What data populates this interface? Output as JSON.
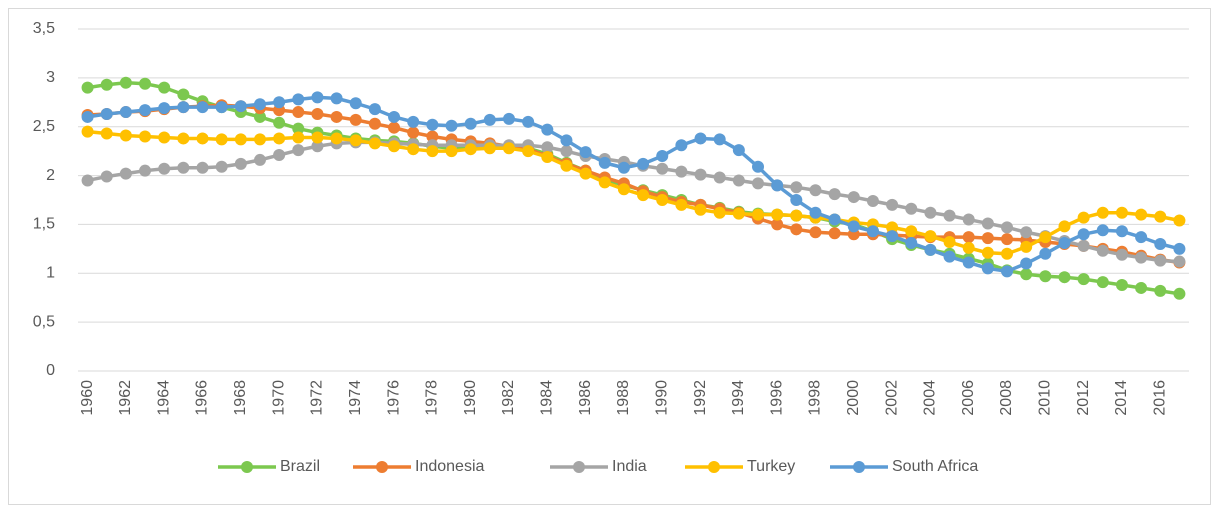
{
  "chart_data": {
    "type": "line",
    "categories": [
      "1960",
      null,
      "1962",
      null,
      "1964",
      null,
      "1966",
      null,
      "1968",
      null,
      "1970",
      null,
      "1972",
      null,
      "1974",
      null,
      "1976",
      null,
      "1978",
      null,
      "1980",
      null,
      "1982",
      null,
      "1984",
      null,
      "1986",
      null,
      "1988",
      null,
      "1990",
      null,
      "1992",
      null,
      "1994",
      null,
      "1996",
      null,
      "1998",
      null,
      "2000",
      null,
      "2002",
      null,
      "2004",
      null,
      "2006",
      null,
      "2008",
      null,
      "2010",
      null,
      "2012",
      null,
      "2014",
      null,
      "2016",
      null
    ],
    "series": [
      {
        "name": "Brazil",
        "color": "#7cc84f",
        "values": [
          2.9,
          2.93,
          2.95,
          2.94,
          2.9,
          2.83,
          2.76,
          2.7,
          2.65,
          2.6,
          2.54,
          2.48,
          2.44,
          2.41,
          2.38,
          2.36,
          2.35,
          2.33,
          2.3,
          2.28,
          2.3,
          2.3,
          2.3,
          2.28,
          2.22,
          2.13,
          2.05,
          1.96,
          1.9,
          1.85,
          1.8,
          1.75,
          1.7,
          1.67,
          1.63,
          1.61,
          1.6,
          1.59,
          1.57,
          1.53,
          1.5,
          1.43,
          1.35,
          1.29,
          1.24,
          1.2,
          1.15,
          1.1,
          1.03,
          0.99,
          0.97,
          0.96,
          0.94,
          0.91,
          0.88,
          0.85,
          0.82,
          0.79
        ]
      },
      {
        "name": "Indonesia",
        "color": "#ed7d31",
        "values": [
          2.62,
          2.63,
          2.65,
          2.66,
          2.68,
          2.7,
          2.71,
          2.72,
          2.71,
          2.69,
          2.67,
          2.65,
          2.63,
          2.6,
          2.57,
          2.53,
          2.49,
          2.44,
          2.4,
          2.37,
          2.35,
          2.33,
          2.3,
          2.27,
          2.2,
          2.12,
          2.05,
          1.98,
          1.92,
          1.84,
          1.78,
          1.73,
          1.7,
          1.66,
          1.62,
          1.56,
          1.5,
          1.45,
          1.42,
          1.41,
          1.4,
          1.4,
          1.39,
          1.38,
          1.37,
          1.37,
          1.37,
          1.36,
          1.35,
          1.34,
          1.32,
          1.3,
          1.28,
          1.25,
          1.22,
          1.18,
          1.14,
          1.11
        ]
      },
      {
        "name": "India",
        "color": "#a5a5a5",
        "values": [
          1.95,
          1.99,
          2.02,
          2.05,
          2.07,
          2.08,
          2.08,
          2.09,
          2.12,
          2.16,
          2.21,
          2.26,
          2.3,
          2.33,
          2.34,
          2.34,
          2.33,
          2.32,
          2.31,
          2.31,
          2.31,
          2.31,
          2.31,
          2.31,
          2.29,
          2.25,
          2.2,
          2.17,
          2.14,
          2.1,
          2.07,
          2.04,
          2.01,
          1.98,
          1.95,
          1.92,
          1.9,
          1.88,
          1.85,
          1.81,
          1.78,
          1.74,
          1.7,
          1.66,
          1.62,
          1.59,
          1.55,
          1.51,
          1.47,
          1.42,
          1.38,
          1.33,
          1.28,
          1.23,
          1.19,
          1.16,
          1.13,
          1.12
        ]
      },
      {
        "name": "Turkey",
        "color": "#ffc000",
        "values": [
          2.45,
          2.43,
          2.41,
          2.4,
          2.39,
          2.38,
          2.38,
          2.37,
          2.37,
          2.37,
          2.38,
          2.39,
          2.39,
          2.38,
          2.36,
          2.33,
          2.3,
          2.27,
          2.25,
          2.25,
          2.27,
          2.28,
          2.28,
          2.25,
          2.19,
          2.1,
          2.02,
          1.93,
          1.86,
          1.8,
          1.75,
          1.7,
          1.65,
          1.62,
          1.61,
          1.6,
          1.6,
          1.59,
          1.57,
          1.55,
          1.52,
          1.5,
          1.47,
          1.43,
          1.38,
          1.32,
          1.26,
          1.21,
          1.2,
          1.27,
          1.37,
          1.48,
          1.57,
          1.62,
          1.62,
          1.6,
          1.58,
          1.54
        ]
      },
      {
        "name": "South Africa",
        "color": "#5b9bd5",
        "values": [
          2.6,
          2.63,
          2.65,
          2.67,
          2.69,
          2.7,
          2.7,
          2.7,
          2.71,
          2.73,
          2.75,
          2.78,
          2.8,
          2.79,
          2.74,
          2.68,
          2.6,
          2.55,
          2.52,
          2.51,
          2.53,
          2.57,
          2.58,
          2.55,
          2.47,
          2.36,
          2.24,
          2.13,
          2.08,
          2.12,
          2.2,
          2.31,
          2.38,
          2.37,
          2.26,
          2.09,
          1.9,
          1.75,
          1.62,
          1.55,
          1.48,
          1.43,
          1.38,
          1.31,
          1.24,
          1.17,
          1.11,
          1.05,
          1.02,
          1.1,
          1.2,
          1.31,
          1.4,
          1.44,
          1.43,
          1.37,
          1.3,
          1.25
        ]
      }
    ],
    "ylim": [
      0,
      3.5
    ],
    "yticks": [
      0,
      {
        "value": 0.5,
        "label": "0,5"
      },
      1,
      {
        "value": 1.5,
        "label": "1,5"
      },
      2,
      {
        "value": 2.5,
        "label": "2,5"
      },
      3,
      {
        "value": 3.5,
        "label": "3,5"
      }
    ],
    "grid": true,
    "legend": "bottom"
  }
}
